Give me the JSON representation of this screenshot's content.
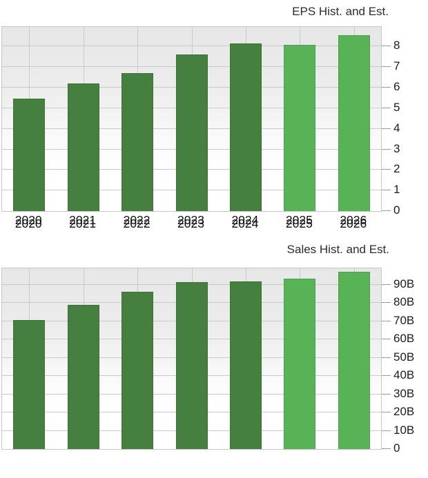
{
  "page": {
    "background": "#ffffff"
  },
  "colors": {
    "hist_bar": "#46803E",
    "est_bar": "#58B356",
    "grid": "#c9c9c9",
    "plot_border": "#c6c6c6",
    "tick": "#9a9a9a",
    "axis_text": "#1c1c1c",
    "title_text": "#2b2b2b"
  },
  "chart_data": [
    {
      "type": "bar",
      "title": "EPS Hist. and Est.",
      "categories": [
        "2020",
        "2021",
        "2022",
        "2023",
        "2024",
        "2025",
        "2026"
      ],
      "values": [
        5.47,
        6.21,
        6.71,
        7.62,
        8.16,
        8.07,
        8.54
      ],
      "kinds": [
        "hist",
        "hist",
        "hist",
        "hist",
        "hist",
        "est",
        "est"
      ],
      "series_meaning": {
        "hist": "historical EPS (dark green)",
        "est": "estimated EPS (light green)"
      },
      "yticks": [
        0,
        1,
        2,
        3,
        4,
        5,
        6,
        7,
        8
      ],
      "ytick_labels": [
        "0",
        "1",
        "2",
        "3",
        "4",
        "5",
        "6",
        "7",
        "8"
      ],
      "ylim": [
        0,
        8.95
      ],
      "xlabel": "",
      "ylabel": "",
      "axis_side": "right",
      "grid": true,
      "legend_position": "none"
    },
    {
      "type": "bar",
      "title": "Sales Hist. and Est.",
      "categories": [
        "2020",
        "2021",
        "2022",
        "2023",
        "2024",
        "2025",
        "2026"
      ],
      "values": [
        70.8,
        78.8,
        86.2,
        91.5,
        91.7,
        93.4,
        97.2
      ],
      "value_unit": "B",
      "kinds": [
        "hist",
        "hist",
        "hist",
        "hist",
        "hist",
        "est",
        "est"
      ],
      "series_meaning": {
        "hist": "historical sales (dark green)",
        "est": "estimated sales (light green)"
      },
      "yticks": [
        0,
        10,
        20,
        30,
        40,
        50,
        60,
        70,
        80,
        90
      ],
      "ytick_labels": [
        "0",
        "10B",
        "20B",
        "30B",
        "40B",
        "50B",
        "60B",
        "70B",
        "80B",
        "90B"
      ],
      "ylim": [
        0,
        99
      ],
      "xlabel": "",
      "ylabel": "",
      "axis_side": "right",
      "grid": true,
      "legend_position": "none"
    }
  ]
}
